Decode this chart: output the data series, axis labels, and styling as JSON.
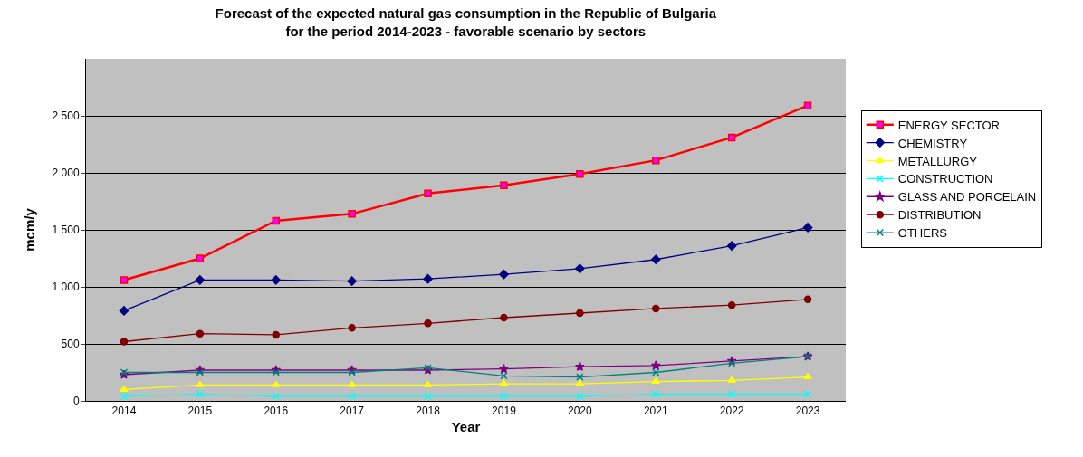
{
  "chart_data": {
    "type": "line",
    "title": "Forecast of the expected natural gas consumption in the Republic of Bulgaria\nfor the period 2014-2023 - favorable scenario by sectors",
    "xlabel": "Year",
    "ylabel": "mcm/y",
    "categories": [
      "2014",
      "2015",
      "2016",
      "2017",
      "2018",
      "2019",
      "2020",
      "2021",
      "2022",
      "2023"
    ],
    "ylim": [
      0,
      3000
    ],
    "yticks": [
      0,
      500,
      {
        "value": 1000,
        "label": "1 000"
      },
      {
        "value": 1500,
        "label": "1 500"
      },
      {
        "value": 2000,
        "label": "2 000"
      },
      {
        "value": 2500,
        "label": "2 500"
      }
    ],
    "grid": "y",
    "legend": "right",
    "series": [
      {
        "name": "ENERGY SECTOR",
        "color": "#ff0000",
        "marker": "square",
        "values": [
          1060,
          1250,
          1580,
          1640,
          1820,
          1890,
          1990,
          2110,
          2310,
          2590
        ]
      },
      {
        "name": "CHEMISTRY",
        "color": "#000080",
        "marker": "diamond",
        "values": [
          790,
          1060,
          1060,
          1050,
          1070,
          1110,
          1160,
          1240,
          1360,
          1520
        ]
      },
      {
        "name": "METALLURGY",
        "color": "#ffff00",
        "marker": "triangle",
        "values": [
          100,
          140,
          140,
          140,
          140,
          150,
          150,
          170,
          180,
          210
        ]
      },
      {
        "name": "CONSTRUCTION",
        "color": "#00ffff",
        "marker": "cross",
        "values": [
          40,
          60,
          40,
          40,
          40,
          40,
          40,
          60,
          60,
          60
        ]
      },
      {
        "name": "GLASS AND PORCELAIN",
        "color": "#800080",
        "marker": "star",
        "values": [
          230,
          270,
          270,
          270,
          270,
          280,
          300,
          310,
          350,
          390
        ]
      },
      {
        "name": "DISTRIBUTION",
        "color": "#800000",
        "marker": "circle",
        "values": [
          520,
          590,
          580,
          640,
          680,
          730,
          770,
          810,
          840,
          890
        ]
      },
      {
        "name": "OTHERS",
        "color": "#008080",
        "marker": "cross",
        "values": [
          250,
          250,
          250,
          250,
          290,
          220,
          210,
          250,
          330,
          390
        ]
      }
    ]
  }
}
